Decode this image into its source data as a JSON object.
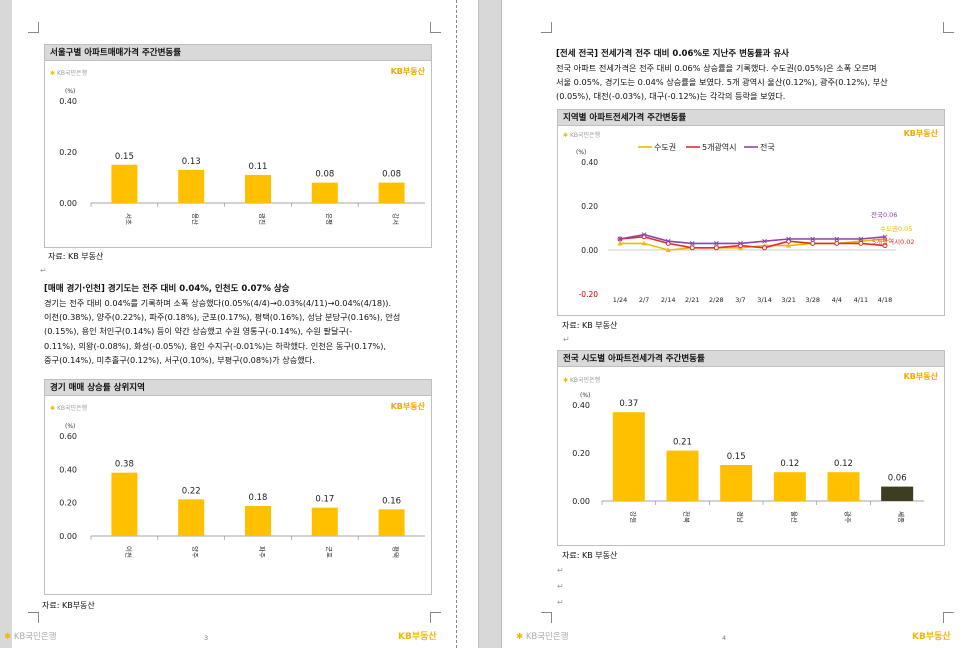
{
  "page3": {
    "chart1": {
      "title": "서울구별 아파트매매가격 주간변동률",
      "kb_logo": "KB국민은행",
      "kb_right": "KB부동산",
      "unit": "(%)",
      "source": "자료: KB 부동산"
    },
    "section_heading": "[매매 경기·인천] 경기도는 전주 대비 0.04%, 인천도 0.07% 상승",
    "section_text": [
      "경기는 전주 대비 0.04%를 기록하며 소폭 상승했다(0.05%(4/4)→0.03%(4/11)→0.04%(4/18)).",
      "이천(0.38%), 양주(0.22%), 파주(0.18%), 군포(0.17%), 평택(0.16%), 성남 분당구(0.16%), 안성",
      "(0.15%), 용인 처인구(0.14%) 등이 약간 상승했고 수원 영통구(-0.14%), 수원 팔달구(-",
      "0.11%), 의왕(-0.08%), 화성(-0.05%), 용인 수지구(-0.01%)는 하락했다. 인천은 동구(0.17%),",
      "중구(0.14%), 미추홀구(0.12%), 서구(0.10%), 부평구(0.08%)가 상승했다."
    ],
    "chart2": {
      "title": "경기 매매 상승률 상위지역",
      "kb_logo": "KB국민은행",
      "kb_right": "KB부동산",
      "unit": "(%)"
    },
    "source2": "자료: KB부동산",
    "footer_left": "KB국민은행",
    "footer_right": "KB부동산",
    "page_number": "3"
  },
  "page4": {
    "heading": "[전세 전국] 전세가격 전주 대비 0.06%로 지난주 변동률과 유사",
    "text": [
      "전국 아파트 전세가격은 전주 대비 0.06% 상승률을 기록했다. 수도권(0.05%)은 소폭 오르며",
      "서울 0.05%, 경기도는 0.04% 상승률을 보였다. 5개 광역시 울산(0.12%), 광주(0.12%), 부산",
      "(0.05%), 대전(-0.03%), 대구(-0.12%)는 각각의 등락을 보였다."
    ],
    "chart3": {
      "title": "지역별 아파트전세가격 주간변동률",
      "kb_logo": "KB국민은행",
      "kb_right": "KB부동산",
      "unit": "(%)",
      "source": "자료: KB 부동산",
      "end_labels": [
        "전국0.06",
        "수도권0.05",
        "5개광역시0.02"
      ]
    },
    "chart4": {
      "title": "전국 시도별 아파트전세가격 주간변동률",
      "kb_logo": "KB국민은행",
      "kb_right": "KB부동산",
      "unit": "(%)",
      "source": "자료: KB 부동산"
    },
    "footer_left": "KB국민은행",
    "footer_right": "KB부동산",
    "page_number": "4"
  },
  "colors": {
    "bar": "#ffc000",
    "bar_dark": "#3d3d22",
    "accent": "#f3a800",
    "sudo": "#f2b800",
    "metro": "#e0302a",
    "national": "#8e44ad"
  },
  "chart_data": [
    {
      "type": "bar",
      "categories": [
        "서초",
        "용산",
        "광진",
        "은평",
        "강서"
      ],
      "values": [
        0.15,
        0.13,
        0.11,
        0.08,
        0.08
      ],
      "title": "서울구별 아파트매매가격 주간변동률",
      "ylabel": "(%)",
      "ylim": [
        0,
        0.4
      ],
      "yticks": [
        "0.00",
        "0.20",
        "0.40"
      ]
    },
    {
      "type": "bar",
      "categories": [
        "이천",
        "양주",
        "파주",
        "군포",
        "평택"
      ],
      "values": [
        0.38,
        0.22,
        0.18,
        0.17,
        0.16
      ],
      "title": "경기 매매 상승률 상위지역",
      "ylabel": "(%)",
      "ylim": [
        0,
        0.6
      ],
      "yticks": [
        "0.00",
        "0.20",
        "0.40",
        "0.60"
      ]
    },
    {
      "type": "line",
      "x": [
        "1/24",
        "2/7",
        "2/14",
        "2/21",
        "2/28",
        "3/7",
        "3/14",
        "3/21",
        "3/28",
        "4/4",
        "4/11",
        "4/18"
      ],
      "series": [
        {
          "name": "수도권",
          "values": [
            0.03,
            0.03,
            0.0,
            0.01,
            0.01,
            0.01,
            0.02,
            0.02,
            0.03,
            0.03,
            0.04,
            0.05
          ]
        },
        {
          "name": "5개광역시",
          "values": [
            0.05,
            0.06,
            0.03,
            0.01,
            0.01,
            0.02,
            0.01,
            0.04,
            0.03,
            0.03,
            0.03,
            0.02
          ]
        },
        {
          "name": "전국",
          "values": [
            0.05,
            0.07,
            0.04,
            0.03,
            0.03,
            0.03,
            0.04,
            0.05,
            0.05,
            0.05,
            0.05,
            0.06
          ]
        }
      ],
      "title": "지역별 아파트전세가격 주간변동률",
      "ylabel": "(%)",
      "ylim": [
        -0.2,
        0.4
      ],
      "yticks": [
        "-0.20",
        "0.00",
        "0.20",
        "0.40"
      ],
      "legend": "top"
    },
    {
      "type": "bar",
      "categories": [
        "강원",
        "전북",
        "경남",
        "울산",
        "광주",
        "세종"
      ],
      "values": [
        0.37,
        0.21,
        0.15,
        0.12,
        0.12,
        0.06
      ],
      "title": "전국 시도별 아파트전세가격 주간변동률",
      "ylabel": "(%)",
      "ylim": [
        0,
        0.4
      ],
      "yticks": [
        "0.00",
        "0.20",
        "0.40"
      ]
    }
  ]
}
